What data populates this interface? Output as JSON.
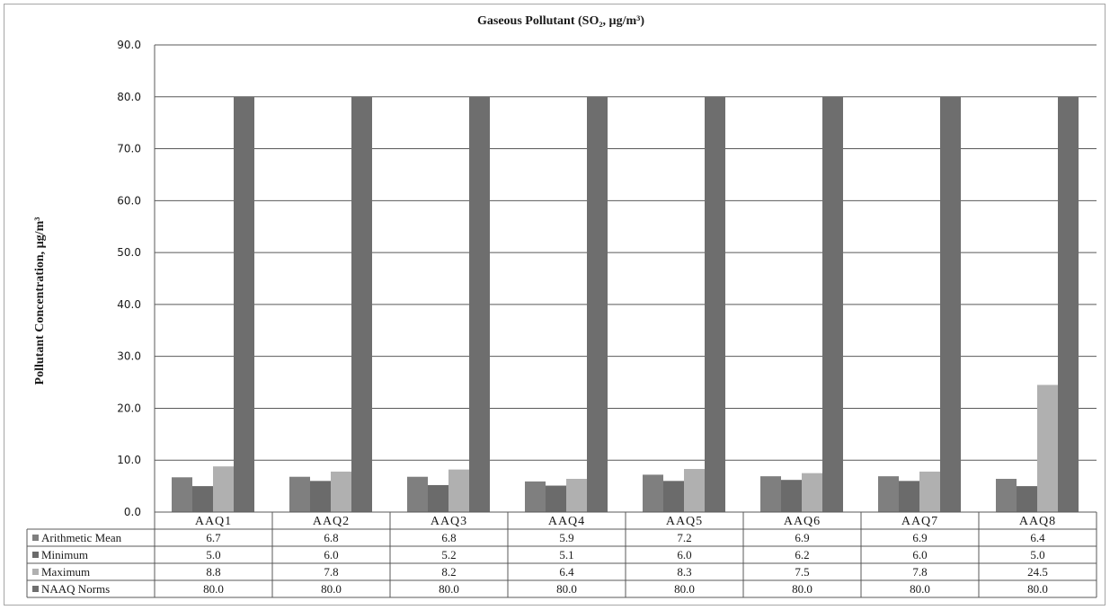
{
  "chart_data": {
    "type": "bar",
    "title": "Gaseous Pollutant (SO₂, µg/m³)",
    "ylabel": "Pollutant Concentration, µg/m³",
    "xlabel": "",
    "ylim": [
      0,
      90
    ],
    "yticks": [
      "0.0",
      "10.0",
      "20.0",
      "30.0",
      "40.0",
      "50.0",
      "60.0",
      "70.0",
      "80.0",
      "90.0"
    ],
    "grid": true,
    "legend": "data-table",
    "categories": [
      "AAQ1",
      "AAQ2",
      "AAQ3",
      "AAQ4",
      "AAQ5",
      "AAQ6",
      "AAQ7",
      "AAQ8"
    ],
    "series": [
      {
        "name": "Arithmetic Mean",
        "color": "#7f7f7f",
        "values": [
          6.7,
          6.8,
          6.8,
          5.9,
          7.2,
          6.9,
          6.9,
          6.4
        ],
        "labels": [
          "6.7",
          "6.8",
          "6.8",
          "5.9",
          "7.2",
          "6.9",
          "6.9",
          "6.4"
        ]
      },
      {
        "name": "Minimum",
        "color": "#6b6b6b",
        "values": [
          5.0,
          6.0,
          5.2,
          5.1,
          6.0,
          6.2,
          6.0,
          5.0
        ],
        "labels": [
          "5.0",
          "6.0",
          "5.2",
          "5.1",
          "6.0",
          "6.2",
          "6.0",
          "5.0"
        ]
      },
      {
        "name": "Maximum",
        "color": "#b0b0b0",
        "values": [
          8.8,
          7.8,
          8.2,
          6.4,
          8.3,
          7.5,
          7.8,
          24.5
        ],
        "labels": [
          "8.8",
          "7.8",
          "8.2",
          "6.4",
          "8.3",
          "7.5",
          "7.8",
          "24.5"
        ]
      },
      {
        "name": "NAAQ Norms",
        "color": "#6e6e6e",
        "values": [
          80,
          80,
          80,
          80,
          80,
          80,
          80,
          80
        ],
        "labels": [
          "80.0",
          "80.0",
          "80.0",
          "80.0",
          "80.0",
          "80.0",
          "80.0",
          "80.0"
        ]
      }
    ]
  }
}
